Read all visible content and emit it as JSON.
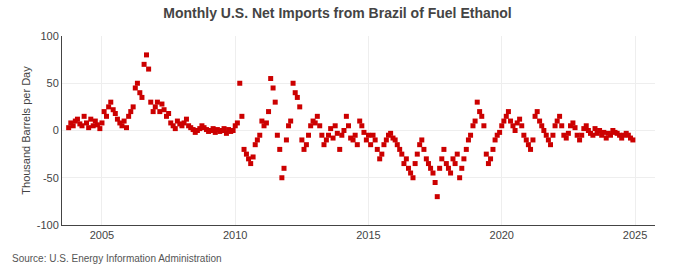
{
  "chart_data": {
    "type": "scatter",
    "title": "Monthly U.S. Net Imports from Brazil of Fuel Ethanol",
    "ylabel": "Thousand Barrels per Day",
    "annotations": [
      "Source: U.S. Energy Information Administration"
    ],
    "color": "#cc0000",
    "marker": "square",
    "grid": true,
    "xlim": [
      2003.5,
      2025.75
    ],
    "ylim": [
      -100,
      100
    ],
    "xticks": [
      2005,
      2010,
      2015,
      2020,
      2025
    ],
    "yticks": [
      -100,
      -50,
      0,
      50,
      100
    ],
    "x": [
      2003.75,
      2003.83,
      2003.92,
      2004.0,
      2004.08,
      2004.17,
      2004.25,
      2004.33,
      2004.42,
      2004.5,
      2004.58,
      2004.67,
      2004.75,
      2004.83,
      2004.92,
      2005.0,
      2005.08,
      2005.17,
      2005.25,
      2005.33,
      2005.42,
      2005.5,
      2005.58,
      2005.67,
      2005.75,
      2005.83,
      2005.92,
      2006.0,
      2006.08,
      2006.17,
      2006.25,
      2006.33,
      2006.42,
      2006.5,
      2006.58,
      2006.67,
      2006.75,
      2006.83,
      2006.92,
      2007.0,
      2007.08,
      2007.17,
      2007.25,
      2007.33,
      2007.42,
      2007.5,
      2007.58,
      2007.67,
      2007.75,
      2007.83,
      2007.92,
      2008.0,
      2008.08,
      2008.17,
      2008.25,
      2008.33,
      2008.42,
      2008.5,
      2008.58,
      2008.67,
      2008.75,
      2008.83,
      2008.92,
      2009.0,
      2009.08,
      2009.17,
      2009.25,
      2009.33,
      2009.42,
      2009.5,
      2009.58,
      2009.67,
      2009.75,
      2009.83,
      2009.92,
      2010.0,
      2010.08,
      2010.17,
      2010.25,
      2010.33,
      2010.42,
      2010.5,
      2010.58,
      2010.67,
      2010.75,
      2010.83,
      2010.92,
      2011.0,
      2011.08,
      2011.17,
      2011.25,
      2011.33,
      2011.42,
      2011.5,
      2011.58,
      2011.67,
      2011.75,
      2011.83,
      2011.92,
      2012.0,
      2012.08,
      2012.17,
      2012.25,
      2012.33,
      2012.42,
      2012.5,
      2012.58,
      2012.67,
      2012.75,
      2012.83,
      2012.92,
      2013.0,
      2013.08,
      2013.17,
      2013.25,
      2013.33,
      2013.42,
      2013.5,
      2013.58,
      2013.67,
      2013.75,
      2013.83,
      2013.92,
      2014.0,
      2014.08,
      2014.17,
      2014.25,
      2014.33,
      2014.42,
      2014.5,
      2014.58,
      2014.67,
      2014.75,
      2014.83,
      2014.92,
      2015.0,
      2015.08,
      2015.17,
      2015.25,
      2015.33,
      2015.42,
      2015.5,
      2015.58,
      2015.67,
      2015.75,
      2015.83,
      2015.92,
      2016.0,
      2016.08,
      2016.17,
      2016.25,
      2016.33,
      2016.42,
      2016.5,
      2016.58,
      2016.67,
      2016.75,
      2016.83,
      2016.92,
      2017.0,
      2017.08,
      2017.17,
      2017.25,
      2017.33,
      2017.42,
      2017.5,
      2017.58,
      2017.67,
      2017.75,
      2017.83,
      2017.92,
      2018.0,
      2018.08,
      2018.17,
      2018.25,
      2018.33,
      2018.42,
      2018.5,
      2018.58,
      2018.67,
      2018.75,
      2018.83,
      2018.92,
      2019.0,
      2019.08,
      2019.17,
      2019.25,
      2019.33,
      2019.42,
      2019.5,
      2019.58,
      2019.67,
      2019.75,
      2019.83,
      2019.92,
      2020.0,
      2020.08,
      2020.17,
      2020.25,
      2020.33,
      2020.42,
      2020.5,
      2020.58,
      2020.67,
      2020.75,
      2020.83,
      2020.92,
      2021.0,
      2021.08,
      2021.17,
      2021.25,
      2021.33,
      2021.42,
      2021.5,
      2021.58,
      2021.67,
      2021.75,
      2021.83,
      2021.92,
      2022.0,
      2022.08,
      2022.17,
      2022.25,
      2022.33,
      2022.42,
      2022.5,
      2022.58,
      2022.67,
      2022.75,
      2022.83,
      2022.92,
      2023.0,
      2023.08,
      2023.17,
      2023.25,
      2023.33,
      2023.42,
      2023.5,
      2023.58,
      2023.67,
      2023.75,
      2023.83,
      2023.92,
      2024.0,
      2024.08,
      2024.17,
      2024.25,
      2024.33,
      2024.42,
      2024.5,
      2024.58,
      2024.67,
      2024.75,
      2024.83,
      2024.92
    ],
    "values": [
      3,
      8,
      5,
      10,
      12,
      7,
      5,
      15,
      8,
      3,
      12,
      5,
      10,
      6,
      2,
      8,
      20,
      15,
      25,
      30,
      22,
      18,
      12,
      8,
      5,
      10,
      3,
      15,
      20,
      25,
      45,
      50,
      40,
      35,
      70,
      80,
      65,
      30,
      20,
      25,
      30,
      20,
      28,
      22,
      15,
      18,
      8,
      5,
      2,
      10,
      7,
      5,
      8,
      12,
      5,
      3,
      1,
      -2,
      0,
      2,
      5,
      3,
      1,
      -1,
      0,
      2,
      -2,
      1,
      -1,
      0,
      2,
      -3,
      1,
      -1,
      0,
      5,
      8,
      50,
      15,
      -20,
      -25,
      -30,
      -35,
      -28,
      -15,
      -10,
      -5,
      10,
      5,
      8,
      20,
      55,
      45,
      30,
      -5,
      -20,
      -50,
      -40,
      -10,
      5,
      10,
      50,
      40,
      35,
      25,
      -10,
      -20,
      -15,
      -5,
      5,
      10,
      8,
      15,
      5,
      -5,
      -15,
      -10,
      -5,
      2,
      -8,
      5,
      -3,
      -20,
      -5,
      0,
      15,
      5,
      -8,
      -10,
      -5,
      -15,
      10,
      5,
      -2,
      -10,
      -5,
      -15,
      -5,
      -10,
      -20,
      -30,
      -25,
      -15,
      -10,
      -5,
      -3,
      -8,
      -10,
      -15,
      -20,
      -25,
      -35,
      -30,
      -40,
      -45,
      -50,
      -35,
      -25,
      -15,
      -10,
      -20,
      -30,
      -35,
      -40,
      -45,
      -55,
      -70,
      -40,
      -30,
      -20,
      -35,
      -40,
      -45,
      -30,
      -35,
      -25,
      -50,
      -40,
      -30,
      -20,
      -10,
      -5,
      5,
      10,
      30,
      20,
      15,
      5,
      -25,
      -35,
      -30,
      -20,
      -10,
      -5,
      -2,
      5,
      10,
      15,
      20,
      10,
      5,
      0,
      8,
      12,
      5,
      -5,
      -10,
      -15,
      -20,
      -10,
      15,
      20,
      10,
      5,
      0,
      -5,
      -10,
      -15,
      -5,
      5,
      10,
      15,
      5,
      -5,
      -8,
      -3,
      5,
      8,
      3,
      -5,
      -10,
      -5,
      2,
      5,
      0,
      -3,
      -5,
      2,
      -3,
      0,
      -5,
      -2,
      -8,
      -3,
      -5,
      0,
      -2,
      -3,
      -5,
      -8,
      -5,
      -3,
      -5,
      -8,
      -10
    ]
  }
}
